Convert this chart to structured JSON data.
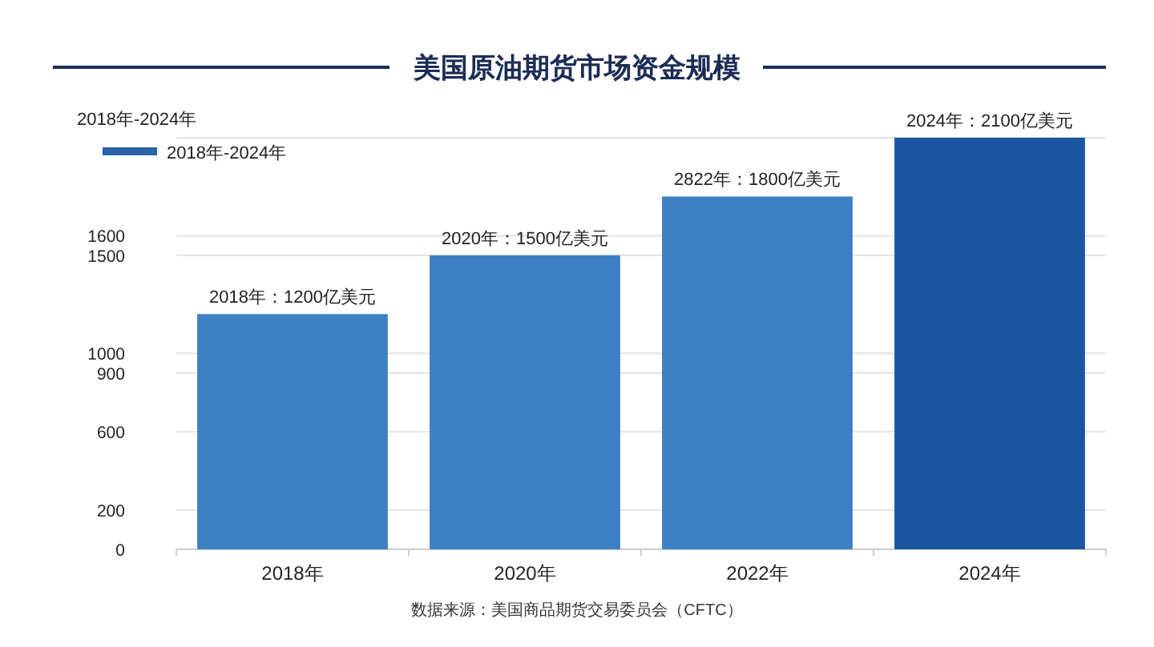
{
  "chart_data": {
    "type": "bar",
    "title": "美国原油期货市场资金规模",
    "ylabel": "2018年-2024年",
    "categories": [
      "2018年",
      "2020年",
      "2022年",
      "2024年"
    ],
    "series": [
      {
        "name": "2018年-2024年",
        "color": "#2a62a8",
        "colors": [
          "#3b80c3",
          "#3b80c3",
          "#3b80c3",
          "#1a57a0"
        ],
        "values": [
          1200,
          1500,
          1800,
          2100
        ],
        "value_labels": [
          "2018年：1200亿美元",
          "2020年：1500亿美元",
          "2822年：1800亿美元",
          "2024年：2100亿美元"
        ]
      }
    ],
    "ylim": [
      0,
      2100
    ],
    "yticks": [
      0,
      200,
      600,
      900,
      1000,
      1500,
      1600,
      {
        "value": 2100,
        "label": null
      }
    ],
    "grid": "y",
    "legend": "top left",
    "annotations": [
      "数据来源：美国商品期货交易委员会（CFTC）"
    ]
  }
}
